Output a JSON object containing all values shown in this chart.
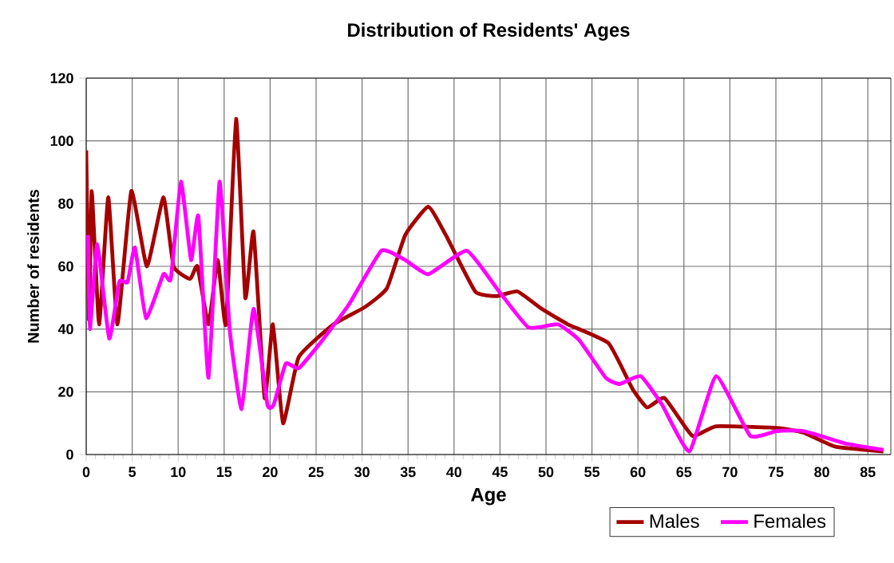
{
  "chart_data": {
    "type": "line",
    "title": "Distribution of Residents' Ages",
    "xlabel": "Age",
    "ylabel": "Number of residents",
    "xlim": [
      0,
      87.5
    ],
    "ylim": [
      0,
      120
    ],
    "xticks": [
      0,
      5,
      10,
      15,
      20,
      25,
      30,
      35,
      40,
      45,
      50,
      55,
      60,
      65,
      70,
      75,
      80,
      85
    ],
    "yticks": [
      0,
      20,
      40,
      60,
      80,
      100,
      120
    ],
    "grid": true,
    "legend": "bottom right",
    "marker": "none",
    "line_style": "solid",
    "series": [
      {
        "name": "Males",
        "color": "#a50000",
        "x": [
          0,
          0.3,
          0.6,
          1.4,
          2.4,
          3.4,
          4.9,
          6.6,
          8.4,
          9.5,
          11.3,
          12.1,
          13.3,
          14.3,
          15.2,
          16.3,
          17.3,
          18.2,
          19.4,
          20.3,
          21.4,
          23.1,
          26.9,
          30.3,
          32.7,
          34.7,
          37.2,
          39.1,
          42.3,
          44.6,
          46.9,
          49.5,
          52.4,
          56.8,
          59.4,
          61.0,
          62.9,
          65.9,
          68.5,
          75.1,
          78,
          81.5,
          86.7
        ],
        "values": [
          97,
          43,
          84,
          41.5,
          82,
          41.5,
          84,
          60,
          82,
          60,
          56,
          60,
          41.5,
          62,
          41.5,
          107,
          50,
          71,
          18,
          41.5,
          10,
          31,
          41.5,
          47,
          53,
          70,
          79,
          70,
          52,
          50.5,
          52,
          46.5,
          41.5,
          35.5,
          21,
          15,
          18,
          6,
          9,
          8.5,
          7,
          2.5,
          1
        ]
      },
      {
        "name": "Females",
        "color": "#ff00ff",
        "x": [
          0.2,
          0.4,
          1.2,
          2.5,
          3.6,
          4.5,
          5.3,
          6.5,
          8.4,
          9.2,
          10.3,
          11.4,
          12.2,
          13.3,
          14.5,
          15.6,
          16.9,
          18.2,
          19.7,
          20.4,
          21.7,
          23.1,
          25.7,
          28.6,
          32.1,
          34.7,
          37.2,
          41.4,
          44.9,
          48.1,
          51.3,
          53.6,
          56.5,
          58.0,
          60.3,
          62.6,
          65.6,
          68.5,
          72.2,
          75.1,
          78,
          82.6,
          86.7
        ],
        "values": [
          70,
          40,
          67,
          37,
          55,
          55,
          66,
          43.5,
          57.5,
          56,
          87,
          62,
          76,
          24.5,
          87,
          40,
          14.5,
          46.5,
          16,
          16,
          29,
          27.5,
          36.5,
          48,
          65,
          62,
          57.5,
          65,
          52,
          40.5,
          41.5,
          36.5,
          24.5,
          22.5,
          25,
          16,
          1,
          25,
          6,
          7.5,
          7.5,
          3.5,
          1.5
        ]
      }
    ]
  }
}
